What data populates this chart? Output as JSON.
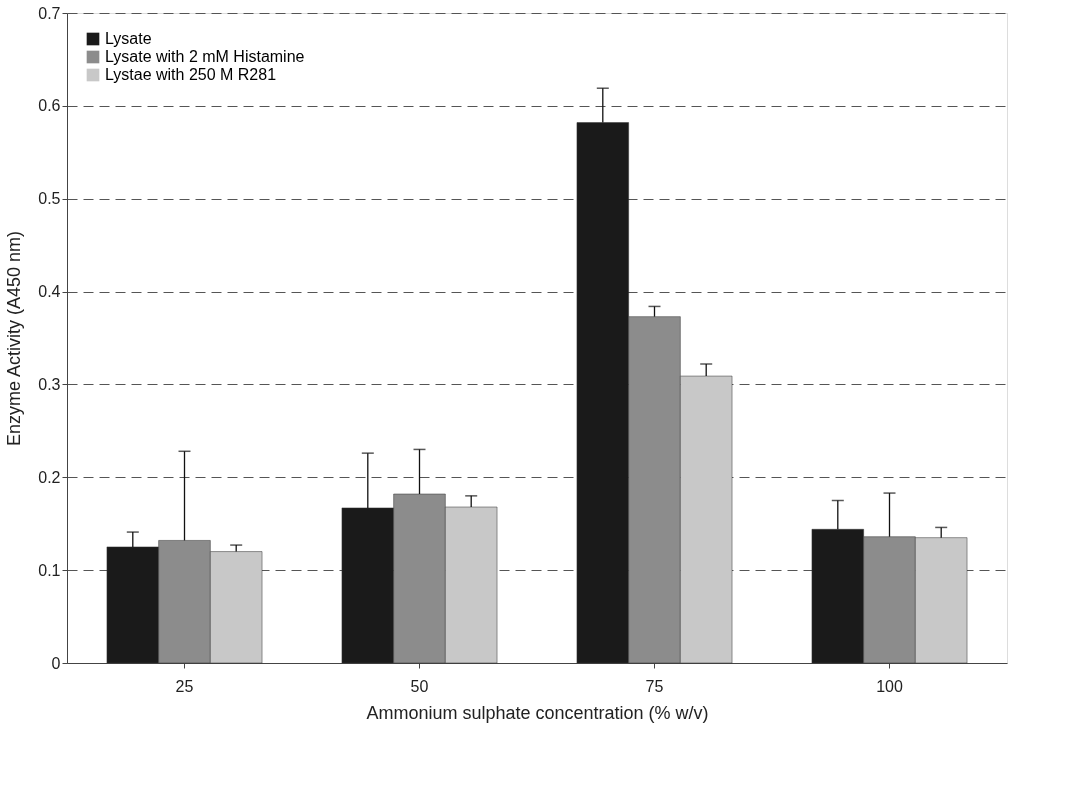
{
  "chart_data": {
    "type": "bar",
    "xlabel": "Ammonium sulphate concentration (% w/v)",
    "ylabel": "Enzyme Activity  (A450 nm)",
    "categories": [
      "25",
      "50",
      "75",
      "100"
    ],
    "series": [
      {
        "name": "Lysate",
        "color": "#1a1a1a",
        "values": [
          0.125,
          0.167,
          0.582,
          0.144
        ],
        "errors": [
          [
            0.125,
            0.141
          ],
          [
            0.167,
            0.226
          ],
          [
            0.582,
            0.619
          ],
          [
            0.144,
            0.175
          ]
        ]
      },
      {
        "name": "Lysate with 2 mM Histamine",
        "color": "#8c8c8c",
        "values": [
          0.132,
          0.182,
          0.373,
          0.136
        ],
        "errors": [
          [
            0.132,
            0.228
          ],
          [
            0.182,
            0.23
          ],
          [
            0.373,
            0.384
          ],
          [
            0.136,
            0.183
          ]
        ]
      },
      {
        "name": "Lystae with 250  M R281",
        "color": "#c8c8c8",
        "values": [
          0.12,
          0.168,
          0.309,
          0.135
        ],
        "errors": [
          [
            0.12,
            0.127
          ],
          [
            0.168,
            0.18
          ],
          [
            0.309,
            0.322
          ],
          [
            0.135,
            0.146
          ]
        ]
      }
    ],
    "ylim": [
      0,
      0.7
    ],
    "yticks": [
      0,
      0.1,
      0.2,
      0.3,
      0.4,
      0.5,
      0.6,
      0.7
    ],
    "grid": "y",
    "legend": "top left"
  }
}
